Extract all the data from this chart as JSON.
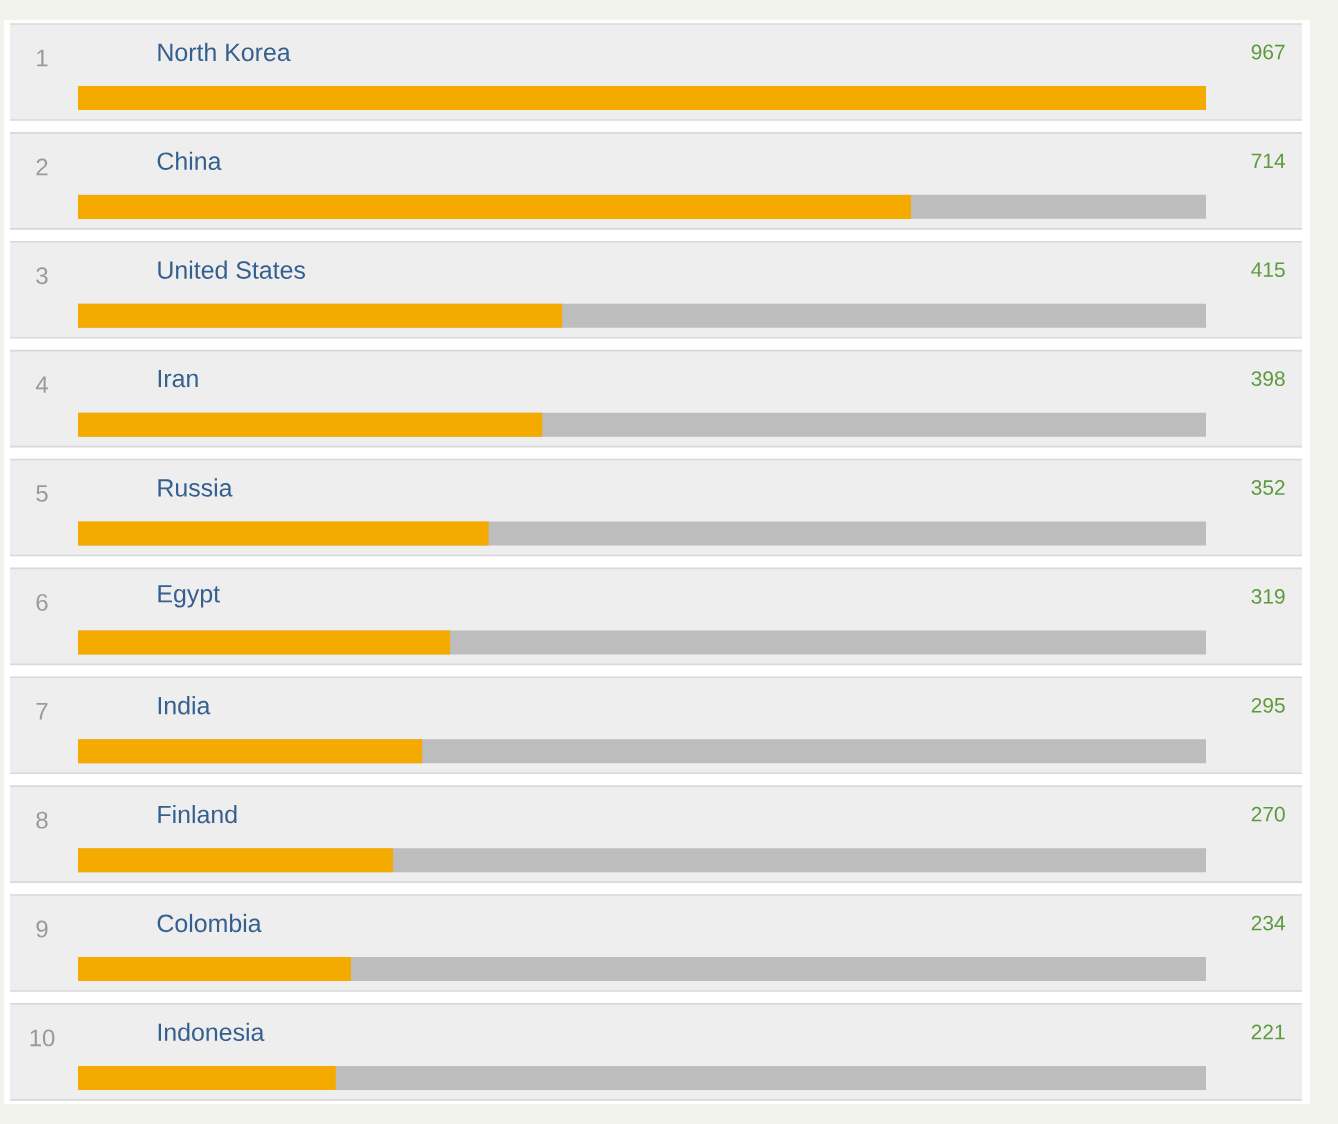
{
  "chart_data": {
    "type": "bar",
    "orientation": "horizontal",
    "categories": [
      "North Korea",
      "China",
      "United States",
      "Iran",
      "Russia",
      "Egypt",
      "India",
      "Finland",
      "Colombia",
      "Indonesia"
    ],
    "values": [
      967,
      714,
      415,
      398,
      352,
      319,
      295,
      270,
      234,
      221
    ],
    "color": "#f5aa00",
    "xlim": [
      0,
      967
    ],
    "data_labels": true,
    "tick_labels": "y",
    "annotations": [
      "1",
      "2",
      "3",
      "4",
      "5",
      "6",
      "7",
      "8",
      "9",
      "10"
    ]
  }
}
